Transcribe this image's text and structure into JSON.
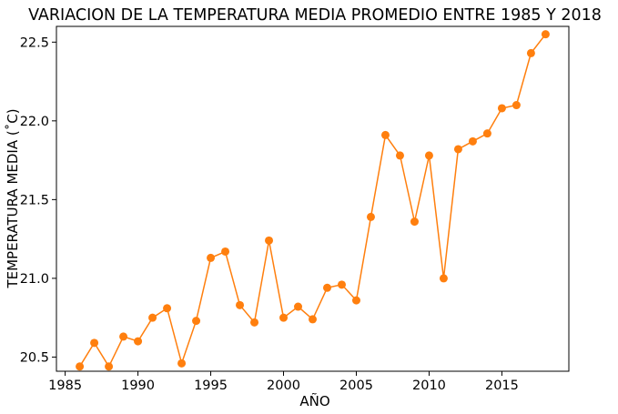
{
  "chart_data": {
    "type": "line",
    "title": "VARIACION DE LA TEMPERATURA MEDIA PROMEDIO ENTRE 1985 Y 2018",
    "xlabel": "AÑO",
    "ylabel": "TEMPERATURA MEDIA (˚C)",
    "xlim": [
      1984.4,
      2019.6
    ],
    "ylim": [
      20.41,
      22.6
    ],
    "xticks": [
      1985,
      1990,
      1995,
      2000,
      2005,
      2010,
      2015
    ],
    "xtick_labels": [
      "1985",
      "1990",
      "1995",
      "2000",
      "2005",
      "2010",
      "2015"
    ],
    "yticks": [
      20.5,
      21.0,
      21.5,
      22.0,
      22.5
    ],
    "ytick_labels": [
      "20.5",
      "21.0",
      "21.5",
      "22.0",
      "22.5"
    ],
    "grid": false,
    "color": "#ff7f0e",
    "series": [
      {
        "x": [
          1986,
          1987,
          1988,
          1989,
          1990,
          1991,
          1992,
          1993,
          1994,
          1995,
          1996,
          1997,
          1998,
          1999,
          2000,
          2001,
          2002,
          2003,
          2004,
          2005,
          2006,
          2007,
          2008,
          2009,
          2010,
          2011,
          2012,
          2013,
          2014,
          2015,
          2016,
          2017,
          2018
        ],
        "values": [
          20.44,
          20.59,
          20.44,
          20.63,
          20.6,
          20.75,
          20.81,
          20.46,
          20.73,
          21.13,
          21.17,
          20.83,
          20.72,
          21.24,
          20.75,
          20.82,
          20.74,
          20.94,
          20.96,
          20.86,
          21.39,
          21.91,
          21.78,
          21.36,
          21.78,
          21.0,
          21.82,
          21.87,
          21.92,
          22.08,
          22.1,
          22.43,
          22.55
        ]
      }
    ]
  }
}
